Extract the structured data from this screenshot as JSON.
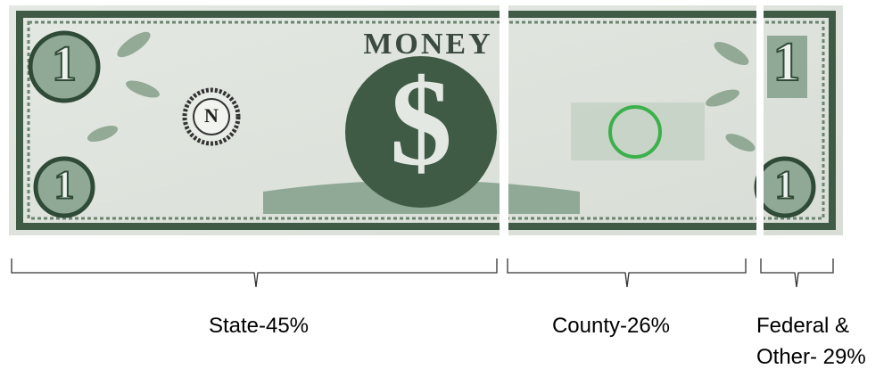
{
  "bill": {
    "title_text": "MONEY",
    "seal_letter": "N",
    "denomination": "1"
  },
  "segments": [
    {
      "label": "State-45%"
    },
    {
      "label": "County-26%"
    },
    {
      "label": "Federal & Other- 29%"
    }
  ]
}
